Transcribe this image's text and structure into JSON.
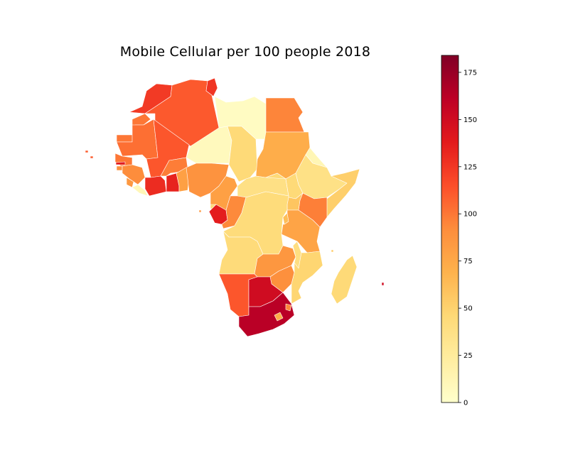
{
  "title": "Mobile Cellular per 100 people 2018",
  "colormap": {
    "name": "YlOrRd",
    "min": 0,
    "max": 184,
    "stops": [
      "#ffffcc",
      "#ffeda0",
      "#fed976",
      "#feb24c",
      "#fd8d3c",
      "#fc4e2a",
      "#e31a1c",
      "#bd0026",
      "#800026"
    ]
  },
  "colorbar": {
    "tick_values": [
      0,
      25,
      50,
      75,
      100,
      125,
      150,
      175
    ],
    "tick_labels": [
      "0",
      "25",
      "50",
      "75",
      "100",
      "125",
      "150",
      "175"
    ]
  },
  "regions": [
    {
      "key": "morocco",
      "value": 124
    },
    {
      "key": "algeria",
      "value": 111
    },
    {
      "key": "tunisia",
      "value": 126
    },
    {
      "key": "libya",
      "value": 5
    },
    {
      "key": "egypt",
      "value": 95
    },
    {
      "key": "western-sahara",
      "value": 100
    },
    {
      "key": "mauritania",
      "value": 103
    },
    {
      "key": "mali",
      "value": 112
    },
    {
      "key": "niger",
      "value": 8
    },
    {
      "key": "chad",
      "value": 45
    },
    {
      "key": "sudan",
      "value": 72
    },
    {
      "key": "senegal",
      "value": 100
    },
    {
      "key": "guinea",
      "value": 92
    },
    {
      "key": "sierra-leone",
      "value": 85
    },
    {
      "key": "liberia",
      "value": 10
    },
    {
      "key": "cote-divoire",
      "value": 130
    },
    {
      "key": "burkina-faso",
      "value": 98
    },
    {
      "key": "ghana",
      "value": 134
    },
    {
      "key": "togo-benin",
      "value": 80
    },
    {
      "key": "nigeria",
      "value": 88
    },
    {
      "key": "cameroon",
      "value": 80
    },
    {
      "key": "central-african-republic",
      "value": 38
    },
    {
      "key": "south-sudan",
      "value": 45
    },
    {
      "key": "ethiopia",
      "value": 37
    },
    {
      "key": "eritrea",
      "value": 12
    },
    {
      "key": "somalia",
      "value": 52
    },
    {
      "key": "kenya",
      "value": 97
    },
    {
      "key": "uganda",
      "value": 58
    },
    {
      "key": "gabon",
      "value": 137
    },
    {
      "key": "equatorial-guinea",
      "value": 45
    },
    {
      "key": "congo",
      "value": 93
    },
    {
      "key": "dr-congo",
      "value": 43
    },
    {
      "key": "tanzania",
      "value": 78
    },
    {
      "key": "rwanda-burundi",
      "value": 62
    },
    {
      "key": "angola",
      "value": 44
    },
    {
      "key": "zambia",
      "value": 86
    },
    {
      "key": "malawi",
      "value": 40
    },
    {
      "key": "mozambique",
      "value": 48
    },
    {
      "key": "zimbabwe",
      "value": 90
    },
    {
      "key": "namibia",
      "value": 112
    },
    {
      "key": "botswana",
      "value": 150
    },
    {
      "key": "south-africa",
      "value": 162
    },
    {
      "key": "lesotho",
      "value": 72
    },
    {
      "key": "eswatini",
      "value": 95
    },
    {
      "key": "madagascar",
      "value": 45
    },
    {
      "key": "gambia",
      "value": 140
    },
    {
      "key": "guinea-bissau",
      "value": 90
    },
    {
      "key": "cape-verde",
      "value": 110
    },
    {
      "key": "mauritius",
      "value": 150
    },
    {
      "key": "sao-tome",
      "value": 85
    },
    {
      "key": "comoros",
      "value": 55
    }
  ]
}
